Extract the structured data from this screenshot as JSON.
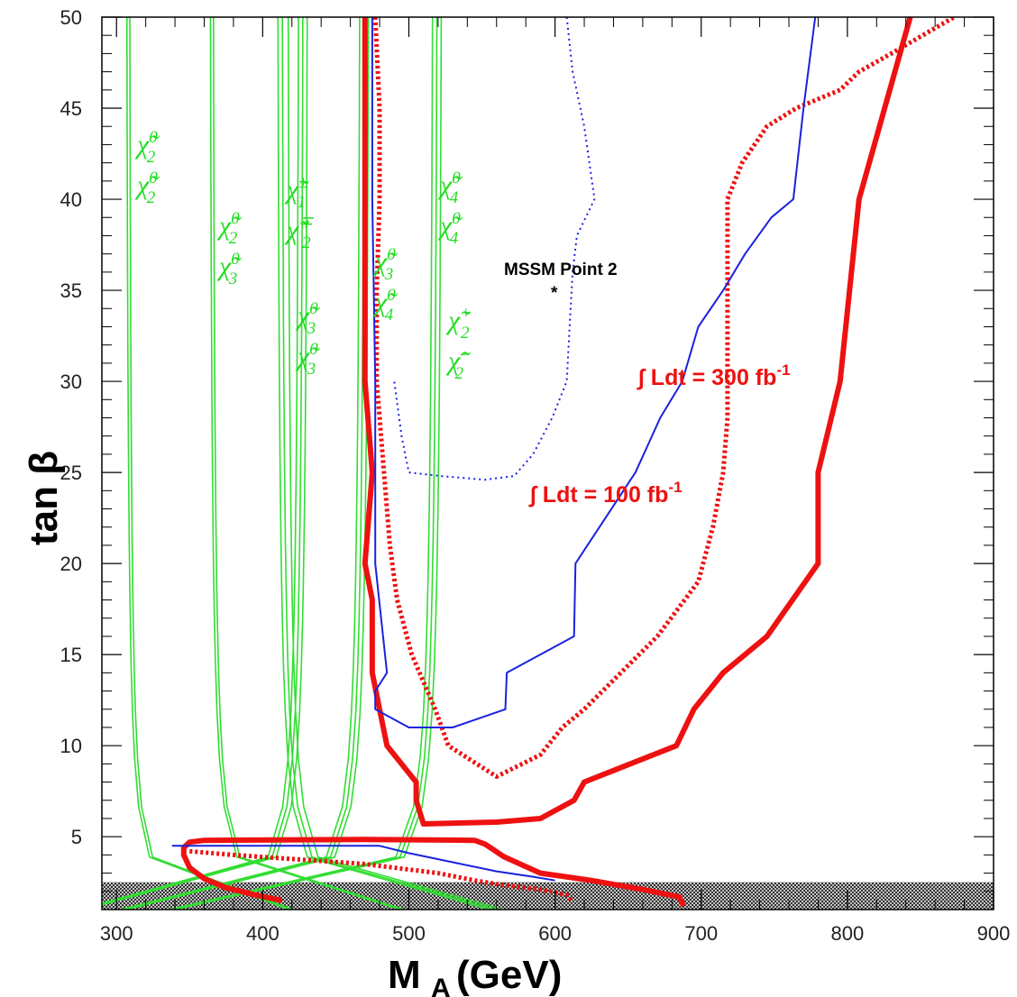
{
  "chart_data": {
    "type": "line",
    "xlabel": "M",
    "xlabel_sub": "A",
    "xlabel_unit": "(GeV)",
    "ylabel": "tan β",
    "xlim": [
      290,
      900
    ],
    "ylim": [
      1,
      50
    ],
    "x_ticks": [
      "300",
      "400",
      "500",
      "600",
      "700",
      "800",
      "900"
    ],
    "y_ticks": [
      "5",
      "10",
      "15",
      "20",
      "25",
      "30",
      "35",
      "40",
      "45",
      "50"
    ],
    "excluded_band": {
      "y_range": [
        1,
        2.5
      ],
      "pattern": "crosshatch"
    },
    "annotations": {
      "point": {
        "label": "MSSM Point 2",
        "marker": "*",
        "x": 600,
        "y": 35
      },
      "lum100": "∫ Ldt = 100 fb-1",
      "lum300": "∫ Ldt = 300 fb-1"
    },
    "decay_channel_labels": [
      {
        "top": "χ̃",
        "top_sup": "0",
        "top_sub": "2",
        "bot": "χ̃",
        "bot_sup": "0",
        "bot_sub": "2"
      },
      {
        "top": "χ̃",
        "top_sup": "0",
        "top_sub": "2",
        "bot": "χ̃",
        "bot_sup": "0",
        "bot_sub": "3"
      },
      {
        "top": "χ̃",
        "top_sup": "±",
        "top_sub": "1",
        "bot": "χ̃",
        "bot_sup": "∓",
        "bot_sub": "2"
      },
      {
        "top": "χ̃",
        "top_sup": "0",
        "top_sub": "3",
        "bot": "χ̃",
        "bot_sup": "0",
        "bot_sub": "3"
      },
      {
        "top": "χ̃",
        "top_sup": "0",
        "top_sub": "3",
        "bot": "χ̃",
        "bot_sup": "0",
        "bot_sub": "4"
      },
      {
        "top": "χ̃",
        "top_sup": "0",
        "top_sub": "4",
        "bot": "χ̃",
        "bot_sup": "0",
        "bot_sub": "4"
      },
      {
        "top": "χ̃",
        "top_sup": "+",
        "top_sub": "2",
        "bot": "χ̃",
        "bot_sup": "-",
        "bot_sub": "2"
      }
    ],
    "series": [
      {
        "style": "thick-solid",
        "color": "#ee1111",
        "x": [
          470,
          470,
          470,
          475,
          470,
          475,
          475,
          480,
          485,
          505,
          505,
          510,
          560,
          590,
          613,
          620,
          683,
          695,
          715,
          745,
          780,
          780,
          795,
          808,
          843
        ],
        "y": [
          50,
          40,
          30,
          25,
          20,
          18,
          14,
          12,
          10,
          8,
          7,
          5.7,
          5.8,
          6,
          7,
          8,
          10,
          12,
          14,
          16,
          20,
          25,
          30,
          40,
          50
        ]
      },
      {
        "style": "thick-solid",
        "color": "#ee1111",
        "x": [
          413,
          395,
          375,
          360,
          350,
          346,
          346,
          350,
          360,
          470,
          545,
          552,
          565,
          590,
          625,
          660,
          685,
          688
        ],
        "y": [
          1.5,
          1.8,
          2.2,
          2.7,
          3.3,
          4.0,
          4.4,
          4.7,
          4.8,
          4.85,
          4.8,
          4.6,
          3.9,
          3.0,
          2.6,
          2.1,
          1.7,
          1.2
        ]
      },
      {
        "style": "thick-dotted",
        "color": "#ee1111",
        "x": [
          477,
          480,
          480,
          478,
          478,
          483,
          487,
          492,
          502,
          518,
          527,
          560,
          590,
          605,
          620,
          645,
          670,
          698,
          708,
          715,
          718,
          718,
          718,
          718,
          718,
          728,
          745,
          765,
          795,
          808,
          830,
          873
        ],
        "y": [
          50,
          45,
          40,
          35,
          30,
          25,
          21,
          18,
          15,
          12,
          10,
          8.3,
          9.5,
          11,
          12,
          14,
          16,
          19,
          22,
          25,
          28,
          30,
          32,
          36,
          40,
          42,
          44,
          45,
          46,
          47,
          48,
          50
        ]
      },
      {
        "style": "thick-dotted",
        "color": "#ee1111",
        "x": [
          350,
          380,
          470,
          520,
          545,
          560,
          590,
          608,
          612
        ],
        "y": [
          4.2,
          4.0,
          3.5,
          3.0,
          2.6,
          2.4,
          2.1,
          1.8,
          1.4
        ]
      },
      {
        "style": "thin-solid",
        "color": "#1a22dd",
        "x": [
          475,
          475,
          477,
          477,
          485,
          477,
          477,
          500,
          530,
          566,
          567,
          613,
          614,
          655,
          672,
          687,
          698,
          715,
          730,
          748,
          763,
          770,
          778
        ],
        "y": [
          50,
          40,
          30,
          20,
          14,
          13,
          12,
          11,
          11,
          12,
          14,
          16,
          20,
          25,
          28,
          30,
          33,
          35,
          37,
          39,
          40,
          45,
          50
        ]
      },
      {
        "style": "thin-solid",
        "color": "#1a22dd",
        "x": [
          338,
          360,
          480,
          500,
          530,
          560,
          585,
          600
        ],
        "y": [
          4.5,
          4.5,
          4.5,
          4.1,
          3.6,
          3.1,
          2.8,
          2.6
        ]
      },
      {
        "style": "thin-dotted",
        "color": "#1a22dd",
        "x": [
          608,
          612,
          620,
          627,
          615,
          612,
          610,
          608,
          598,
          585,
          572,
          552,
          522,
          500,
          495,
          490
        ],
        "y": [
          50,
          47,
          44,
          40,
          38,
          36,
          33,
          30,
          28,
          26,
          24.8,
          24.6,
          24.8,
          25,
          27,
          30
        ]
      }
    ]
  }
}
